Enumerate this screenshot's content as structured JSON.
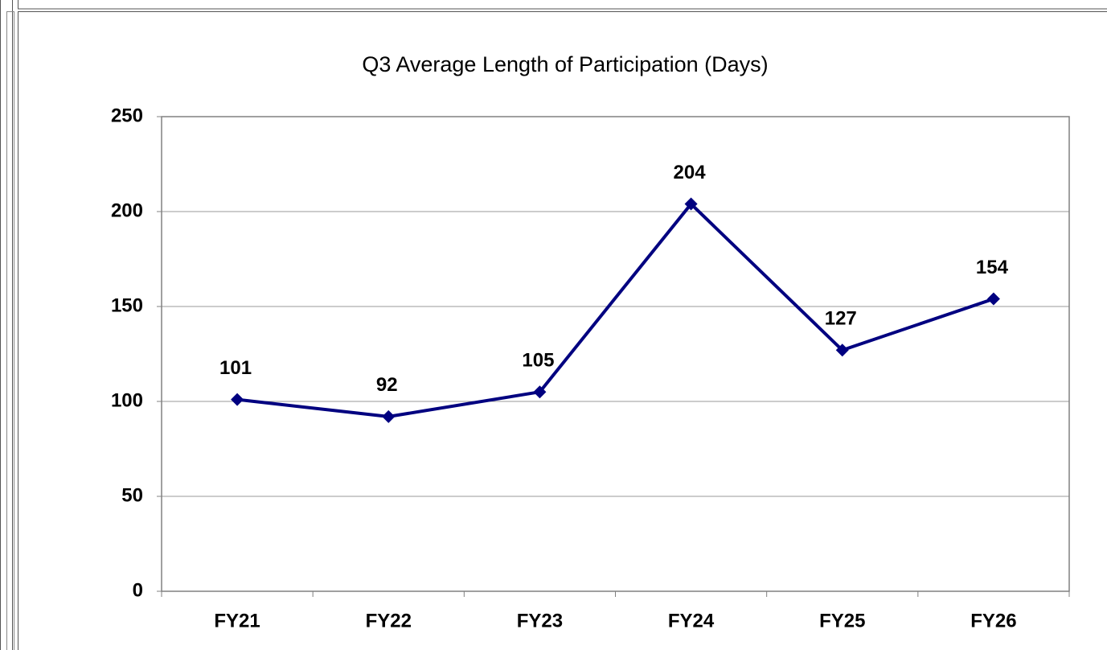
{
  "chart_data": {
    "type": "line",
    "title": "Q3 Average Length of Participation (Days)",
    "categories": [
      "FY21",
      "FY22",
      "FY23",
      "FY24",
      "FY25",
      "FY26"
    ],
    "values": [
      101,
      92,
      105,
      204,
      127,
      154
    ],
    "color": "#000080",
    "ylim": [
      0,
      250
    ],
    "yticks": [
      0,
      50,
      100,
      150,
      200,
      250
    ],
    "grid": true
  }
}
